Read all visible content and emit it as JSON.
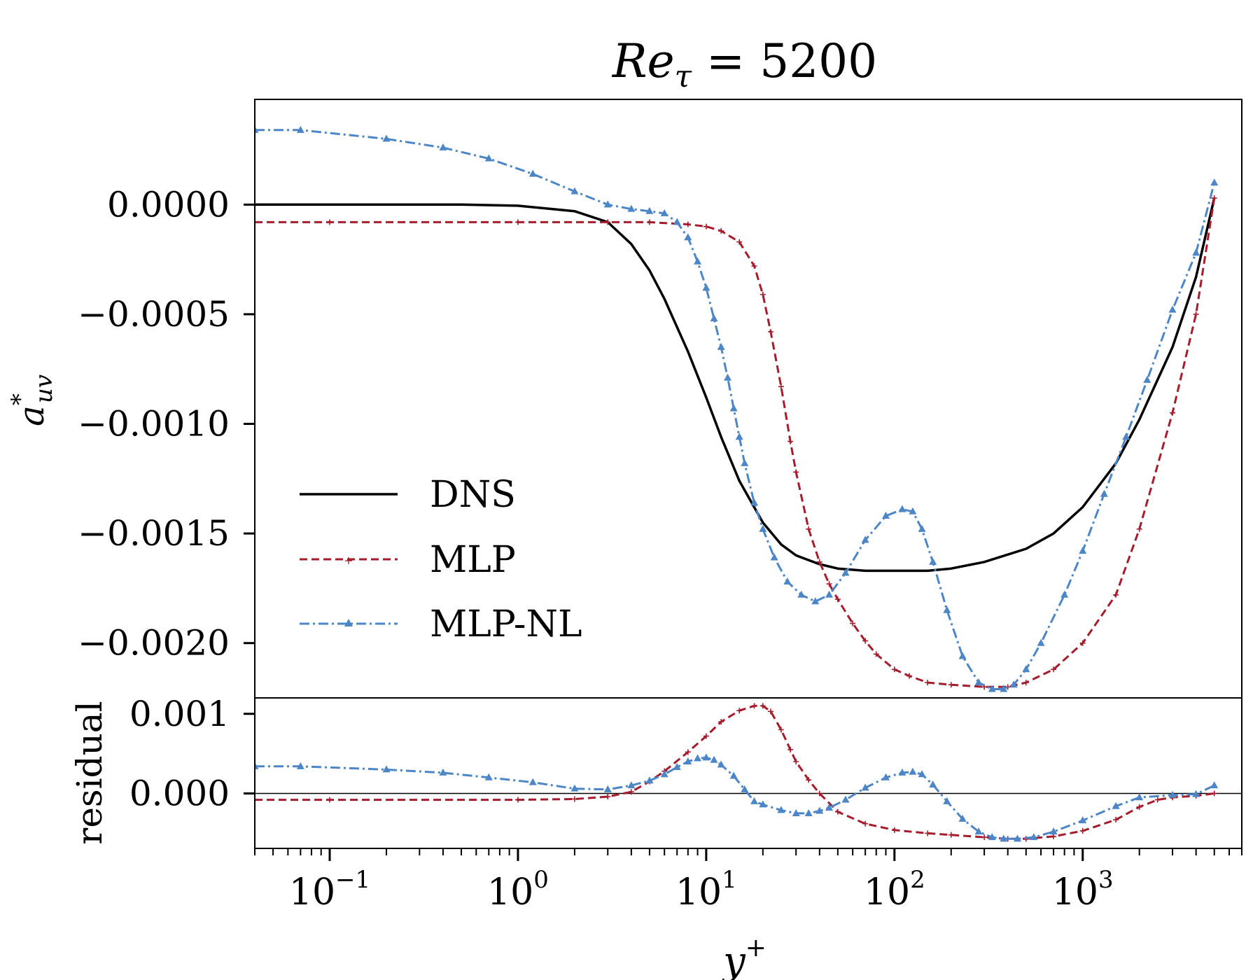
{
  "chart_data": {
    "type": "line",
    "title_base": "Re",
    "title_sub": "τ",
    "title_rest": " = 5200",
    "xlabel_base": "y",
    "xlabel_sup": "+",
    "xscale": "log",
    "xlim": [
      0.04,
      7000
    ],
    "xtick_labels": [
      {
        "value": 0.1,
        "base": "10",
        "exp": "−1"
      },
      {
        "value": 1,
        "base": "10",
        "exp": "0"
      },
      {
        "value": 10,
        "base": "10",
        "exp": "1"
      },
      {
        "value": 100,
        "base": "10",
        "exp": "2"
      },
      {
        "value": 1000,
        "base": "10",
        "exp": "3"
      }
    ],
    "legend": {
      "placement": "center-left",
      "entries": [
        "DNS",
        "MLP",
        "MLP-NL"
      ]
    },
    "panels": [
      {
        "name": "main",
        "ylabel_base": "a",
        "ylabel_sup": "*",
        "ylabel_sub": "uv",
        "ylim": [
          -0.00225,
          0.00048
        ],
        "yticks": [
          0.0,
          -0.0005,
          -0.001,
          -0.0015,
          -0.002
        ],
        "ytick_labels": [
          "0.0000",
          "−0.0005",
          "−0.0010",
          "−0.0015",
          "−0.0020"
        ],
        "series": [
          {
            "name": "DNS",
            "color": "#000000",
            "dash": "solid",
            "marker": "none",
            "x": [
              0.04,
              0.1,
              0.5,
              1,
              2,
              3,
              4,
              5,
              6,
              8,
              10,
              12,
              15,
              20,
              25,
              30,
              40,
              50,
              70,
              100,
              150,
              200,
              300,
              500,
              700,
              1000,
              1500,
              2000,
              3000,
              4000,
              5000
            ],
            "y": [
              0.0,
              0.0,
              0.0,
              -5e-06,
              -3e-05,
              -8e-05,
              -0.00018,
              -0.0003,
              -0.00043,
              -0.00067,
              -0.00088,
              -0.00106,
              -0.00126,
              -0.00145,
              -0.00155,
              -0.0016,
              -0.00164,
              -0.00166,
              -0.00167,
              -0.00167,
              -0.00167,
              -0.00166,
              -0.00163,
              -0.00157,
              -0.0015,
              -0.00138,
              -0.00118,
              -0.00098,
              -0.00065,
              -0.00033,
              3e-05
            ]
          },
          {
            "name": "MLP",
            "color": "#a51d2d",
            "dash": "dashed",
            "marker": "plus",
            "x": [
              0.04,
              0.1,
              1,
              3,
              5,
              8,
              10,
              12,
              15,
              18,
              20,
              22,
              25,
              28,
              30,
              35,
              40,
              45,
              50,
              60,
              70,
              80,
              100,
              120,
              150,
              200,
              300,
              400,
              500,
              700,
              1000,
              1500,
              2000,
              3000,
              4000,
              5000
            ],
            "y": [
              -8e-05,
              -8e-05,
              -8e-05,
              -8e-05,
              -8e-05,
              -9e-05,
              -0.0001,
              -0.00012,
              -0.00017,
              -0.00028,
              -0.00041,
              -0.00058,
              -0.00083,
              -0.00108,
              -0.00122,
              -0.00148,
              -0.00163,
              -0.00173,
              -0.0018,
              -0.00191,
              -0.00199,
              -0.00205,
              -0.00212,
              -0.00215,
              -0.00218,
              -0.00219,
              -0.0022,
              -0.0022,
              -0.00218,
              -0.00212,
              -0.002,
              -0.00178,
              -0.00148,
              -0.00095,
              -0.0005,
              3e-05
            ]
          },
          {
            "name": "MLP-NL",
            "color": "#4d86c6",
            "dash": "dashdot",
            "marker": "triangle",
            "x": [
              0.04,
              0.07,
              0.2,
              0.4,
              0.7,
              1.2,
              2,
              3,
              4,
              5,
              6,
              7,
              8,
              9,
              10,
              11,
              12,
              13,
              14,
              15,
              16,
              18,
              20,
              23,
              27,
              32,
              38,
              45,
              55,
              70,
              90,
              110,
              125,
              140,
              160,
              190,
              230,
              280,
              330,
              380,
              430,
              500,
              600,
              800,
              1000,
              1300,
              1700,
              2200,
              3000,
              4000,
              5000
            ],
            "y": [
              0.00034,
              0.00034,
              0.0003,
              0.00026,
              0.00021,
              0.00014,
              6e-05,
              0.0,
              -2e-05,
              -3e-05,
              -4e-05,
              -8e-05,
              -0.00015,
              -0.00026,
              -0.00038,
              -0.00052,
              -0.00065,
              -0.00079,
              -0.00093,
              -0.00106,
              -0.00118,
              -0.00136,
              -0.00148,
              -0.00161,
              -0.00172,
              -0.00178,
              -0.00181,
              -0.00178,
              -0.00168,
              -0.00153,
              -0.00142,
              -0.00139,
              -0.0014,
              -0.00148,
              -0.00163,
              -0.00185,
              -0.00206,
              -0.00218,
              -0.00221,
              -0.00221,
              -0.00219,
              -0.00212,
              -0.002,
              -0.00178,
              -0.00158,
              -0.00132,
              -0.00106,
              -0.0008,
              -0.00048,
              -0.00022,
              0.0001
            ]
          }
        ]
      },
      {
        "name": "residual",
        "ylabel": "residual",
        "ylim": [
          -0.00069,
          0.0012
        ],
        "yticks": [
          0.001,
          0.0
        ],
        "ytick_labels": [
          "0.001",
          "0.000"
        ],
        "zero_line": true,
        "series": [
          {
            "name": "MLP",
            "color": "#a51d2d",
            "dash": "dashed",
            "marker": "plus",
            "x": [
              0.04,
              0.1,
              1,
              2,
              3,
              4,
              5,
              6,
              8,
              10,
              12,
              15,
              18,
              20,
              22,
              25,
              28,
              30,
              35,
              40,
              50,
              70,
              100,
              150,
              200,
              300,
              400,
              500,
              700,
              1000,
              1500,
              2000,
              2500,
              3000,
              4000,
              5000
            ],
            "y": [
              -8e-05,
              -8e-05,
              -8e-05,
              -7e-05,
              -4e-05,
              2e-05,
              0.00015,
              0.00028,
              0.00052,
              0.00072,
              0.0009,
              0.00104,
              0.0011,
              0.0011,
              0.00103,
              0.0008,
              0.00055,
              0.0004,
              0.00017,
              0.0,
              -0.00023,
              -0.00038,
              -0.00046,
              -0.0005,
              -0.00052,
              -0.00055,
              -0.00057,
              -0.00057,
              -0.00054,
              -0.00047,
              -0.00033,
              -0.00017,
              -8e-05,
              -5e-05,
              -3e-05,
              0.0
            ]
          },
          {
            "name": "MLP-NL",
            "color": "#4d86c6",
            "dash": "dashdot",
            "marker": "triangle",
            "x": [
              0.04,
              0.07,
              0.2,
              0.4,
              0.7,
              1.2,
              2,
              3,
              4,
              5,
              6,
              7,
              8,
              9,
              10,
              11,
              12,
              14,
              16,
              18,
              20,
              25,
              30,
              35,
              40,
              45,
              55,
              70,
              90,
              110,
              125,
              140,
              160,
              190,
              230,
              280,
              330,
              380,
              450,
              550,
              700,
              1000,
              1500,
              2000,
              3000,
              4000,
              5000
            ],
            "y": [
              0.00034,
              0.00034,
              0.0003,
              0.00026,
              0.0002,
              0.00014,
              6e-05,
              5e-05,
              0.0001,
              0.00016,
              0.00024,
              0.00033,
              0.0004,
              0.00044,
              0.00045,
              0.00042,
              0.00036,
              0.00022,
              5e-05,
              -0.0001,
              -0.00014,
              -0.00021,
              -0.00025,
              -0.00025,
              -0.00022,
              -0.00018,
              -8e-05,
              7e-05,
              0.0002,
              0.00026,
              0.00027,
              0.00024,
              0.00011,
              -0.0001,
              -0.00032,
              -0.00048,
              -0.00055,
              -0.00057,
              -0.00057,
              -0.00055,
              -0.00048,
              -0.00034,
              -0.00016,
              -5e-05,
              -2e-05,
              -1e-05,
              0.0001
            ]
          }
        ]
      }
    ]
  }
}
